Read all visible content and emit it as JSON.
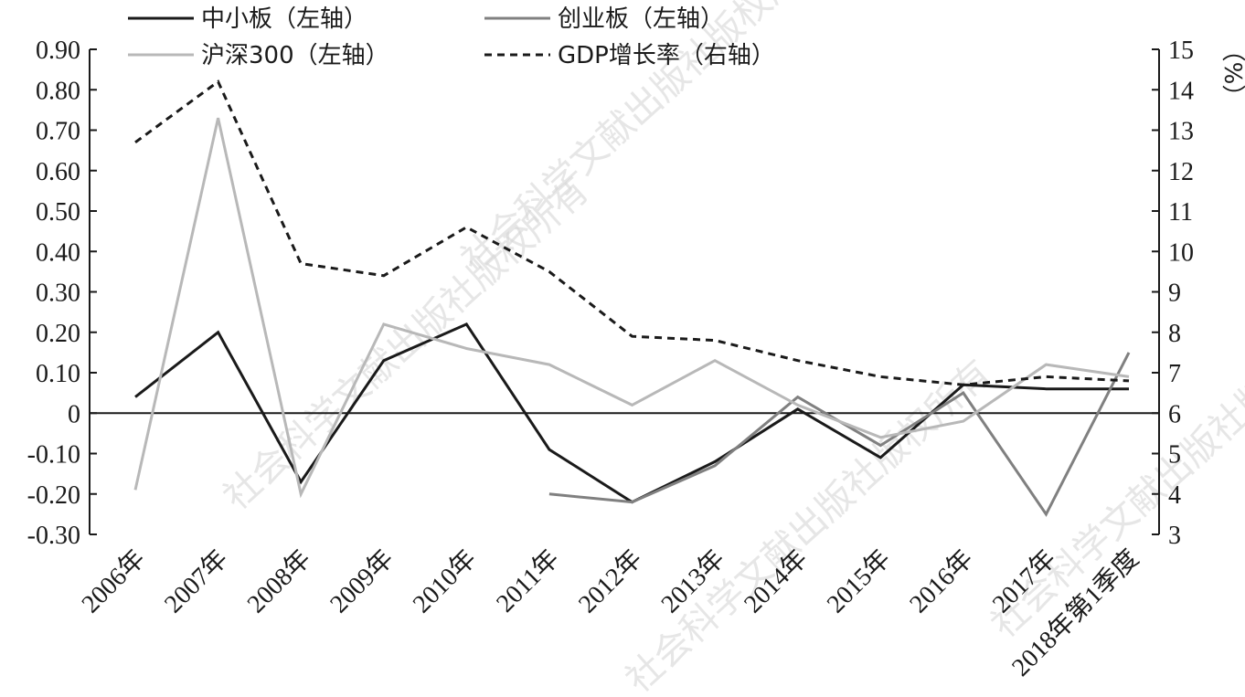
{
  "chart_data": {
    "type": "line",
    "categories": [
      "2006年",
      "2007年",
      "2008年",
      "2009年",
      "2010年",
      "2011年",
      "2012年",
      "2013年",
      "2014年",
      "2015年",
      "2016年",
      "2017年",
      "2018年第1季度"
    ],
    "left_axis": {
      "min": -0.3,
      "max": 0.9,
      "step": 0.1,
      "tick_labels": [
        "-0.30",
        "-0.20",
        "-0.10",
        "0",
        "0.10",
        "0.20",
        "0.30",
        "0.40",
        "0.50",
        "0.60",
        "0.70",
        "0.80",
        "0.90"
      ]
    },
    "right_axis": {
      "min": 3,
      "max": 15,
      "step": 1,
      "tick_labels": [
        "3",
        "4",
        "5",
        "6",
        "7",
        "8",
        "9",
        "10",
        "11",
        "12",
        "13",
        "14",
        "15"
      ],
      "unit_label": "（%）"
    },
    "series": [
      {
        "name": "中小板（左轴）",
        "axis": "left",
        "color": "#1a1a1a",
        "dash": "none",
        "width": 3,
        "values": [
          0.04,
          0.2,
          -0.17,
          0.13,
          0.22,
          -0.09,
          -0.22,
          -0.12,
          0.01,
          -0.11,
          0.07,
          0.06,
          0.06
        ]
      },
      {
        "name": "创业板（左轴）",
        "axis": "left",
        "color": "#808080",
        "dash": "none",
        "width": 3,
        "values": [
          null,
          null,
          null,
          null,
          null,
          -0.2,
          -0.22,
          -0.13,
          0.04,
          -0.08,
          0.05,
          -0.25,
          0.15
        ]
      },
      {
        "name": "沪深300（左轴）",
        "axis": "left",
        "color": "#b8b8b8",
        "dash": "none",
        "width": 3,
        "values": [
          -0.19,
          0.73,
          -0.2,
          0.22,
          0.16,
          0.12,
          0.02,
          0.13,
          0.02,
          -0.06,
          -0.02,
          0.12,
          0.09
        ]
      },
      {
        "name": "GDP增长率（右轴）",
        "axis": "right",
        "color": "#1a1a1a",
        "dash": "8,6",
        "width": 3,
        "values": [
          12.7,
          14.2,
          9.7,
          9.4,
          10.6,
          9.5,
          7.9,
          7.8,
          7.3,
          6.9,
          6.7,
          6.9,
          6.8
        ]
      }
    ],
    "legend": {
      "placement": "top"
    },
    "grid": false
  },
  "watermark": "社会科学文献出版社版权所有"
}
